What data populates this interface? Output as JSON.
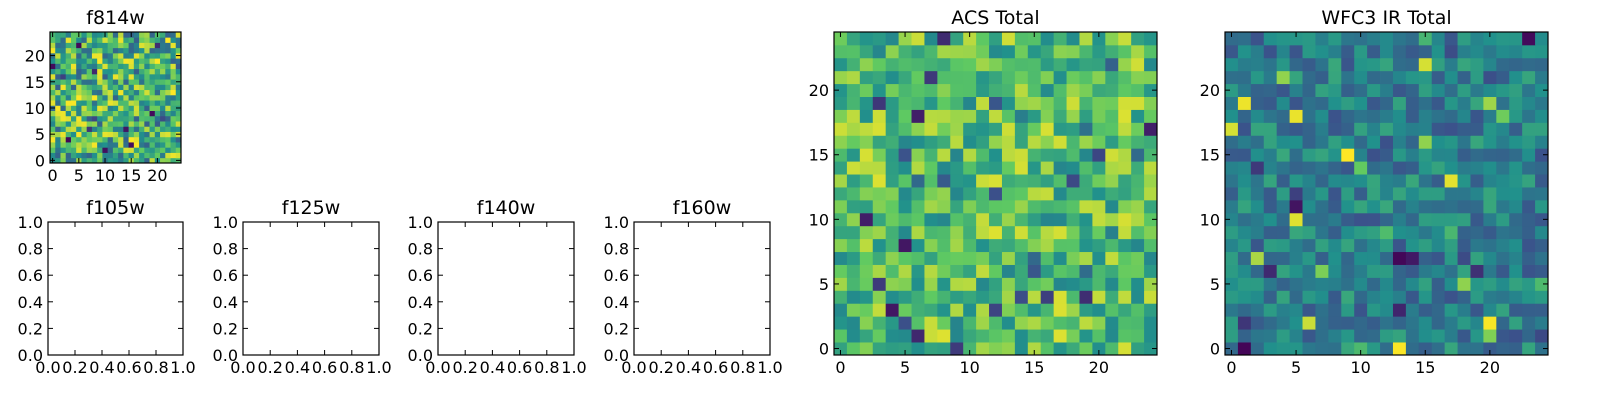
{
  "figure": {
    "background": "#ffffff",
    "colormap": "viridis",
    "colormap_stops": [
      "#440154",
      "#3b528b",
      "#21918c",
      "#5ec962",
      "#fde725"
    ]
  },
  "chart_data": [
    {
      "id": "f814w",
      "type": "heatmap",
      "title": "f814w",
      "xlim": [
        -0.5,
        24.5
      ],
      "ylim": [
        -0.5,
        24.5
      ],
      "xticks": [
        "0",
        "5",
        "10",
        "15",
        "20"
      ],
      "yticks": [
        "0",
        "5",
        "10",
        "15",
        "20"
      ],
      "grid": false,
      "grid_size": [
        25,
        25
      ],
      "value_range": [
        0,
        1
      ],
      "value_note": "25x25 pixel image; individual pixel values are not printed on the figure",
      "seed": 11
    },
    {
      "id": "f105w",
      "type": "heatmap",
      "title": "f105w",
      "xlim": [
        0.0,
        1.0
      ],
      "ylim": [
        0.0,
        1.0
      ],
      "xticks": [
        "0.0",
        "0.2",
        "0.4",
        "0.6",
        "0.8",
        "1.0"
      ],
      "yticks": [
        "0.0",
        "0.2",
        "0.4",
        "0.6",
        "0.8",
        "1.0"
      ],
      "grid": false,
      "empty": true
    },
    {
      "id": "f125w",
      "type": "heatmap",
      "title": "f125w",
      "xlim": [
        0.0,
        1.0
      ],
      "ylim": [
        0.0,
        1.0
      ],
      "xticks": [
        "0.0",
        "0.2",
        "0.4",
        "0.6",
        "0.8",
        "1.0"
      ],
      "yticks": [
        "0.0",
        "0.2",
        "0.4",
        "0.6",
        "0.8",
        "1.0"
      ],
      "grid": false,
      "empty": true
    },
    {
      "id": "f140w",
      "type": "heatmap",
      "title": "f140w",
      "xlim": [
        0.0,
        1.0
      ],
      "ylim": [
        0.0,
        1.0
      ],
      "xticks": [
        "0.0",
        "0.2",
        "0.4",
        "0.6",
        "0.8",
        "1.0"
      ],
      "yticks": [
        "0.0",
        "0.2",
        "0.4",
        "0.6",
        "0.8",
        "1.0"
      ],
      "grid": false,
      "empty": true
    },
    {
      "id": "f160w",
      "type": "heatmap",
      "title": "f160w",
      "xlim": [
        0.0,
        1.0
      ],
      "ylim": [
        0.0,
        1.0
      ],
      "xticks": [
        "0.0",
        "0.2",
        "0.4",
        "0.6",
        "0.8",
        "1.0"
      ],
      "yticks": [
        "0.0",
        "0.2",
        "0.4",
        "0.6",
        "0.8",
        "1.0"
      ],
      "grid": false,
      "empty": true
    },
    {
      "id": "acs_total",
      "type": "heatmap",
      "title": "ACS Total",
      "xlim": [
        -0.5,
        24.5
      ],
      "ylim": [
        -0.5,
        24.5
      ],
      "xticks": [
        "0",
        "5",
        "10",
        "15",
        "20"
      ],
      "yticks": [
        "0",
        "5",
        "10",
        "15",
        "20"
      ],
      "grid": false,
      "grid_size": [
        25,
        25
      ],
      "value_range": [
        0,
        1
      ],
      "value_note": "25x25 pixel image; individual pixel values are not printed on the figure",
      "seed": 23
    },
    {
      "id": "wfc3_ir_total",
      "type": "heatmap",
      "title": "WFC3 IR Total",
      "xlim": [
        -0.5,
        24.5
      ],
      "ylim": [
        -0.5,
        24.5
      ],
      "xticks": [
        "0",
        "5",
        "10",
        "15",
        "20"
      ],
      "yticks": [
        "0",
        "5",
        "10",
        "15",
        "20"
      ],
      "grid": false,
      "grid_size": [
        25,
        25
      ],
      "value_range": [
        0,
        1
      ],
      "value_note": "25x25 pixel image; individual pixel values are not printed on the figure",
      "seed": 37
    }
  ]
}
